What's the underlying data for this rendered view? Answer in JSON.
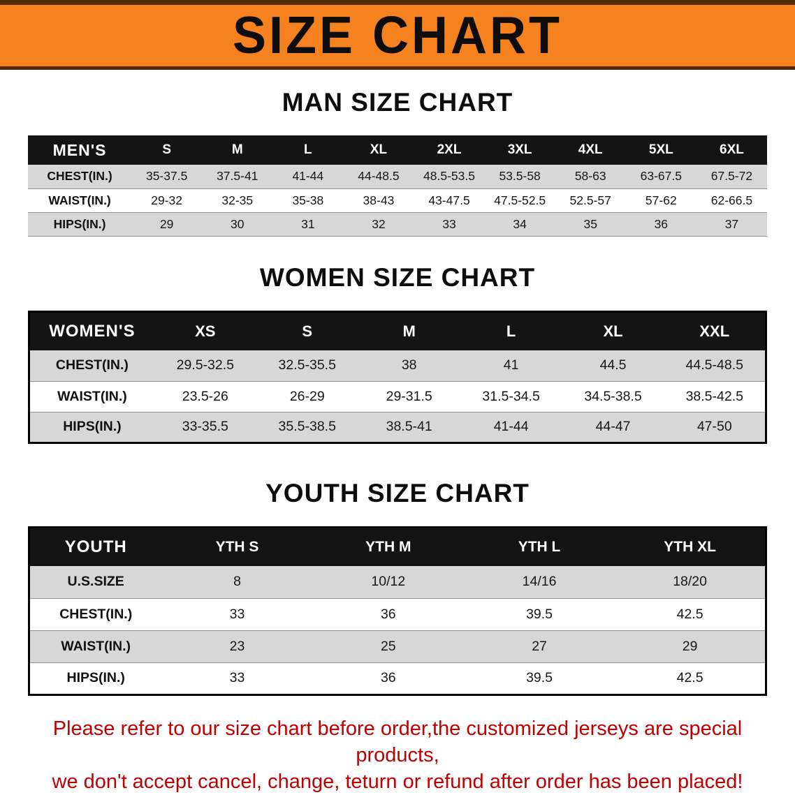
{
  "banner": {
    "title": "SIZE CHART"
  },
  "men": {
    "heading": "MAN SIZE CHART",
    "header": [
      "MEN'S",
      "S",
      "M",
      "L",
      "XL",
      "2XL",
      "3XL",
      "4XL",
      "5XL",
      "6XL"
    ],
    "rows": [
      [
        "CHEST(IN.)",
        "35-37.5",
        "37.5-41",
        "41-44",
        "44-48.5",
        "48.5-53.5",
        "53.5-58",
        "58-63",
        "63-67.5",
        "67.5-72"
      ],
      [
        "WAIST(IN.)",
        "29-32",
        "32-35",
        "35-38",
        "38-43",
        "43-47.5",
        "47.5-52.5",
        "52.5-57",
        "57-62",
        "62-66.5"
      ],
      [
        "HIPS(IN.)",
        "29",
        "30",
        "31",
        "32",
        "33",
        "34",
        "35",
        "36",
        "37"
      ]
    ]
  },
  "women": {
    "heading": "WOMEN SIZE CHART",
    "header": [
      "WOMEN'S",
      "XS",
      "S",
      "M",
      "L",
      "XL",
      "XXL"
    ],
    "rows": [
      [
        "CHEST(IN.)",
        "29.5-32.5",
        "32.5-35.5",
        "38",
        "41",
        "44.5",
        "44.5-48.5"
      ],
      [
        "WAIST(IN.)",
        "23.5-26",
        "26-29",
        "29-31.5",
        "31.5-34.5",
        "34.5-38.5",
        "38.5-42.5"
      ],
      [
        "HIPS(IN.)",
        "33-35.5",
        "35.5-38.5",
        "38.5-41",
        "41-44",
        "44-47",
        "47-50"
      ]
    ]
  },
  "youth": {
    "heading": "YOUTH SIZE CHART",
    "header": [
      "YOUTH",
      "YTH S",
      "YTH M",
      "YTH L",
      "YTH XL"
    ],
    "rows": [
      [
        "U.S.SIZE",
        "8",
        "10/12",
        "14/16",
        "18/20"
      ],
      [
        "CHEST(IN.)",
        "33",
        "36",
        "39.5",
        "42.5"
      ],
      [
        "WAIST(IN.)",
        "23",
        "25",
        "27",
        "29"
      ],
      [
        "HIPS(IN.)",
        "33",
        "36",
        "39.5",
        "42.5"
      ]
    ]
  },
  "notice": {
    "line1": "Please refer to our size chart before order,the customized jerseys are special products,",
    "line2": "we don't accept cancel, change, teturn or refund after order has been placed!"
  },
  "colors": {
    "banner_bg": "#F5821F",
    "banner_edge": "#532A06",
    "table_header_bg": "#141414",
    "row_alt_bg": "#D7D7D7",
    "notice_text": "#C00000"
  }
}
